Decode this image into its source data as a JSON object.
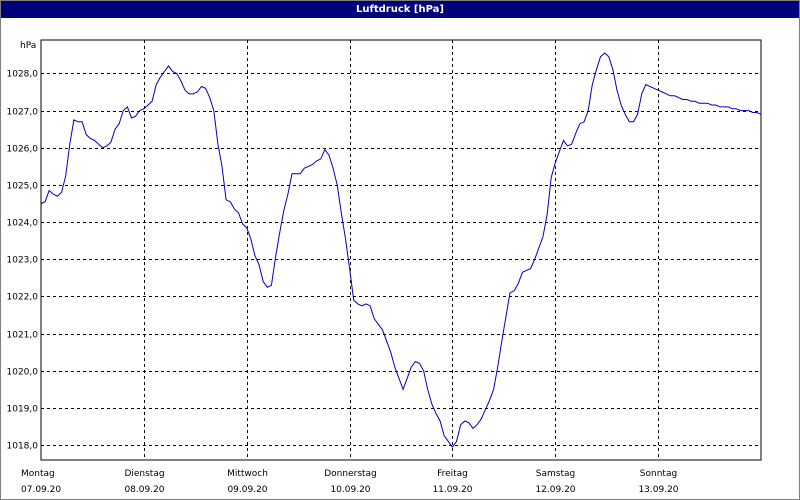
{
  "chart_data": {
    "type": "line",
    "title": "Luftdruck [hPa]",
    "ylabel": "hPa",
    "ylim": [
      1017.6,
      1028.9
    ],
    "yticks": [
      "1018,0",
      "1019,0",
      "1020,0",
      "1021,0",
      "1022,0",
      "1023,0",
      "1024,0",
      "1025,0",
      "1026,0",
      "1027,0",
      "1028,0"
    ],
    "ytick_values": [
      1018,
      1019,
      1020,
      1021,
      1022,
      1023,
      1024,
      1025,
      1026,
      1027,
      1028
    ],
    "xlim": [
      0,
      7
    ],
    "xticks": [
      {
        "day": "Montag",
        "date": "07.09.20"
      },
      {
        "day": "Dienstag",
        "date": "08.09.20"
      },
      {
        "day": "Mittwoch",
        "date": "09.09.20"
      },
      {
        "day": "Donnerstag",
        "date": "10.09.20"
      },
      {
        "day": "Freitag",
        "date": "11.09.20"
      },
      {
        "day": "Samstag",
        "date": "12.09.20"
      },
      {
        "day": "Sonntag",
        "date": "13.09.20"
      }
    ],
    "grid": true,
    "series": [
      {
        "color": "#0000c0",
        "x": [
          0,
          0.04,
          0.08,
          0.12,
          0.16,
          0.2,
          0.24,
          0.28,
          0.32,
          0.36,
          0.4,
          0.44,
          0.48,
          0.52,
          0.56,
          0.6,
          0.64,
          0.68,
          0.72,
          0.76,
          0.8,
          0.84,
          0.88,
          0.92,
          0.96,
          1.0,
          1.04,
          1.08,
          1.12,
          1.16,
          1.2,
          1.24,
          1.28,
          1.32,
          1.36,
          1.4,
          1.44,
          1.48,
          1.52,
          1.56,
          1.6,
          1.64,
          1.68,
          1.72,
          1.76,
          1.8,
          1.84,
          1.88,
          1.92,
          1.96,
          2.0,
          2.04,
          2.08,
          2.12,
          2.16,
          2.2,
          2.24,
          2.28,
          2.32,
          2.36,
          2.4,
          2.44,
          2.48,
          2.52,
          2.56,
          2.6,
          2.64,
          2.68,
          2.72,
          2.76,
          2.8,
          2.84,
          2.88,
          2.92,
          2.96,
          3.0,
          3.04,
          3.08,
          3.12,
          3.16,
          3.2,
          3.24,
          3.28,
          3.32,
          3.36,
          3.4,
          3.44,
          3.48,
          3.52,
          3.56,
          3.6,
          3.64,
          3.68,
          3.72,
          3.76,
          3.8,
          3.84,
          3.88,
          3.92,
          3.96,
          4.0,
          4.04,
          4.08,
          4.12,
          4.16,
          4.2,
          4.24,
          4.28,
          4.32,
          4.36,
          4.4,
          4.44,
          4.48,
          4.52,
          4.56,
          4.6,
          4.64,
          4.68,
          4.72,
          4.76,
          4.8,
          4.84,
          4.88,
          4.92,
          4.96,
          5.0,
          5.04,
          5.08,
          5.12,
          5.16,
          5.2,
          5.24,
          5.28,
          5.32,
          5.36,
          5.4,
          5.44,
          5.48,
          5.52,
          5.56,
          5.6,
          5.64,
          5.68,
          5.72,
          5.76,
          5.8,
          5.84,
          5.88,
          5.92,
          5.96,
          6.0,
          6.04,
          6.08,
          6.12,
          6.16,
          6.2,
          6.24,
          6.28,
          6.32,
          6.36,
          6.4,
          6.44,
          6.48,
          6.52,
          6.56,
          6.6,
          6.64,
          6.68,
          6.72,
          6.76,
          6.8,
          6.84,
          6.88,
          6.92,
          6.96,
          7.0
        ],
        "y": [
          1024.5,
          1024.55,
          1024.85,
          1024.75,
          1024.7,
          1024.8,
          1025.25,
          1026.1,
          1026.75,
          1026.7,
          1026.7,
          1026.35,
          1026.25,
          1026.2,
          1026.1,
          1026.0,
          1026.05,
          1026.15,
          1026.5,
          1026.65,
          1027.0,
          1027.1,
          1026.8,
          1026.85,
          1027.0,
          1027.05,
          1027.15,
          1027.25,
          1027.7,
          1027.9,
          1028.05,
          1028.2,
          1028.05,
          1028.0,
          1027.8,
          1027.55,
          1027.45,
          1027.45,
          1027.5,
          1027.65,
          1027.6,
          1027.35,
          1027.0,
          1026.1,
          1025.5,
          1024.6,
          1024.55,
          1024.35,
          1024.25,
          1023.95,
          1023.85,
          1023.55,
          1023.1,
          1022.85,
          1022.4,
          1022.25,
          1022.3,
          1023.05,
          1023.7,
          1024.3,
          1024.75,
          1025.3,
          1025.3,
          1025.3,
          1025.45,
          1025.5,
          1025.55,
          1025.65,
          1025.7,
          1025.95,
          1025.8,
          1025.45,
          1025.0,
          1024.25,
          1023.55,
          1022.75,
          1021.9,
          1021.8,
          1021.75,
          1021.8,
          1021.75,
          1021.4,
          1021.25,
          1021.1,
          1020.8,
          1020.5,
          1020.1,
          1019.8,
          1019.5,
          1019.8,
          1020.1,
          1020.25,
          1020.2,
          1020.0,
          1019.5,
          1019.1,
          1018.85,
          1018.65,
          1018.25,
          1018.1,
          1017.95,
          1018.1,
          1018.55,
          1018.65,
          1018.6,
          1018.45,
          1018.55,
          1018.7,
          1018.95,
          1019.2,
          1019.5,
          1020.1,
          1020.8,
          1021.45,
          1022.1,
          1022.15,
          1022.35,
          1022.65,
          1022.7,
          1022.75,
          1023.0,
          1023.3,
          1023.6,
          1024.2,
          1025.2,
          1025.6,
          1025.9,
          1026.2,
          1026.05,
          1026.1,
          1026.4,
          1026.65,
          1026.7,
          1027.0,
          1027.7,
          1028.1,
          1028.45,
          1028.55,
          1028.45,
          1028.1,
          1027.55,
          1027.15,
          1026.9,
          1026.7,
          1026.7,
          1026.9,
          1027.45,
          1027.7,
          1027.65,
          1027.6,
          1027.55,
          1027.5,
          1027.45,
          1027.4,
          1027.4,
          1027.35,
          1027.3,
          1027.3,
          1027.25,
          1027.25,
          1027.2,
          1027.2,
          1027.2,
          1027.15,
          1027.15,
          1027.1,
          1027.1,
          1027.1,
          1027.05,
          1027.05,
          1027.0,
          1027.0,
          1027.0,
          1026.95,
          1026.95,
          1026.9
        ]
      }
    ]
  }
}
